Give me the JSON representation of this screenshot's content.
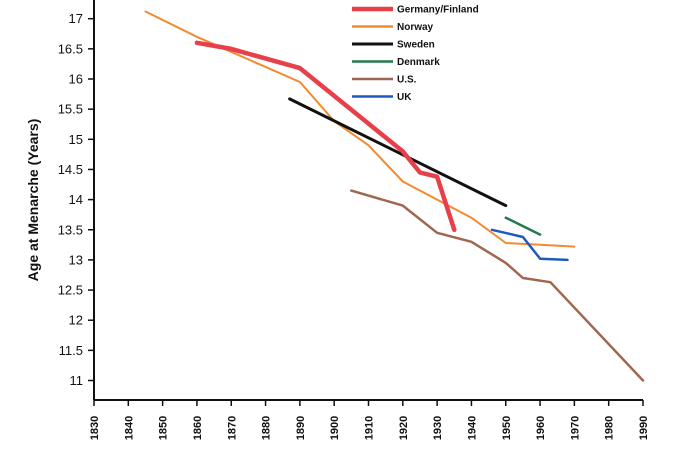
{
  "chart_data": {
    "type": "line",
    "title": "",
    "xlabel": "",
    "ylabel": "Age at Menarche (Years)",
    "xlim": [
      1830,
      1990
    ],
    "ylim": [
      10.7,
      17.2
    ],
    "x_ticks": [
      "1830",
      "1840",
      "1850",
      "1860",
      "1870",
      "1880",
      "1890",
      "1900",
      "1910",
      "1920",
      "1930",
      "1940",
      "1950",
      "1960",
      "1970",
      "1980",
      "1990"
    ],
    "y_ticks": [
      "11",
      "11.5",
      "12",
      "12.5",
      "13",
      "13.5",
      "14",
      "14.5",
      "15",
      "15.5",
      "16",
      "16.5",
      "17"
    ],
    "legend_position": "top-right",
    "series": [
      {
        "name": "Germany/Finland",
        "color": "#e8404a",
        "width": 4.5,
        "points": [
          [
            1860,
            16.6
          ],
          [
            1870,
            16.5
          ],
          [
            1890,
            16.18
          ],
          [
            1920,
            14.8
          ],
          [
            1925,
            14.45
          ],
          [
            1930,
            14.38
          ],
          [
            1935,
            13.5
          ]
        ]
      },
      {
        "name": "Norway",
        "color": "#f28a30",
        "width": 2,
        "points": [
          [
            1845,
            17.12
          ],
          [
            1860,
            16.7
          ],
          [
            1870,
            16.45
          ],
          [
            1890,
            15.95
          ],
          [
            1900,
            15.3
          ],
          [
            1910,
            14.9
          ],
          [
            1920,
            14.3
          ],
          [
            1930,
            14.0
          ],
          [
            1940,
            13.7
          ],
          [
            1950,
            13.28
          ],
          [
            1960,
            13.25
          ],
          [
            1970,
            13.22
          ]
        ]
      },
      {
        "name": "Sweden",
        "color": "#111111",
        "width": 3,
        "points": [
          [
            1887,
            15.67
          ],
          [
            1950,
            13.9
          ]
        ]
      },
      {
        "name": "Denmark",
        "color": "#237a4f",
        "width": 2.5,
        "points": [
          [
            1950,
            13.7
          ],
          [
            1960,
            13.42
          ]
        ]
      },
      {
        "name": "U.S.",
        "color": "#a06750",
        "width": 2.5,
        "points": [
          [
            1905,
            14.15
          ],
          [
            1920,
            13.9
          ],
          [
            1930,
            13.45
          ],
          [
            1940,
            13.3
          ],
          [
            1950,
            12.95
          ],
          [
            1955,
            12.7
          ],
          [
            1963,
            12.63
          ],
          [
            1990,
            11.0
          ]
        ]
      },
      {
        "name": "UK",
        "color": "#1f5bbf",
        "width": 2.5,
        "points": [
          [
            1946,
            13.5
          ],
          [
            1955,
            13.38
          ],
          [
            1960,
            13.02
          ],
          [
            1968,
            13.0
          ]
        ]
      }
    ]
  }
}
